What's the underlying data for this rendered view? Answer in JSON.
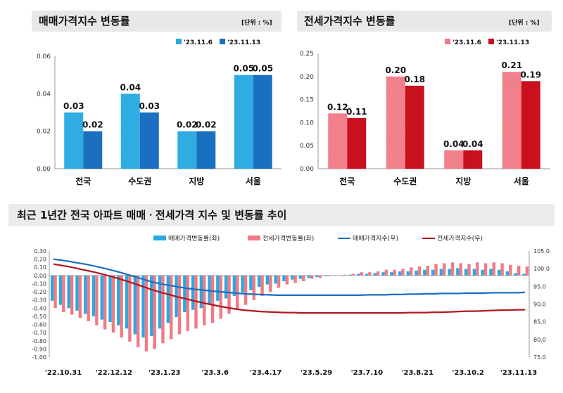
{
  "chart_data": [
    {
      "type": "bar",
      "title": "매매가격지수 변동률",
      "unit": "[단위 : %]",
      "categories": [
        "전국",
        "수도권",
        "지방",
        "서울"
      ],
      "series": [
        {
          "name": "'23.11.6",
          "values": [
            0.03,
            0.04,
            0.02,
            0.05
          ],
          "color": "#29a9e0"
        },
        {
          "name": "'23.11.13",
          "values": [
            0.02,
            0.03,
            0.02,
            0.05
          ],
          "color": "#1a6fc0"
        }
      ],
      "yticks": [
        "0.06",
        "0.04",
        "0.02",
        "0.00"
      ],
      "ylim": [
        0,
        0.06
      ],
      "legend": "top-right"
    },
    {
      "type": "bar",
      "title": "전세가격지수 변동률",
      "unit": "[단위 : %]",
      "categories": [
        "전국",
        "수도권",
        "지방",
        "서울"
      ],
      "series": [
        {
          "name": "'23.11.6",
          "values": [
            0.12,
            0.2,
            0.04,
            0.21
          ],
          "color": "#f07a85"
        },
        {
          "name": "'23.11.13",
          "values": [
            0.11,
            0.18,
            0.04,
            0.19
          ],
          "color": "#c8101e"
        }
      ],
      "yticks": [
        "0.25",
        "0.20",
        "0.15",
        "0.10",
        "0.05",
        "0.00"
      ],
      "ylim": [
        0,
        0.25
      ],
      "legend": "top-right"
    },
    {
      "type": "bar+line",
      "title": "최근 1년간 전국 아파트 매매ㆍ전세가격 지수 및 변동률 추이",
      "series": [
        {
          "name": "매매가격변동률(좌)",
          "kind": "bar",
          "axis": "left",
          "color": "#29a9e0",
          "values": [
            -0.31,
            -0.36,
            -0.4,
            -0.43,
            -0.47,
            -0.5,
            -0.54,
            -0.57,
            -0.61,
            -0.65,
            -0.72,
            -0.76,
            -0.74,
            -0.65,
            -0.58,
            -0.51,
            -0.45,
            -0.42,
            -0.4,
            -0.36,
            -0.31,
            -0.28,
            -0.25,
            -0.21,
            -0.18,
            -0.14,
            -0.11,
            -0.1,
            -0.07,
            -0.05,
            -0.04,
            -0.03,
            -0.02,
            -0.01,
            0.0,
            0.0,
            0.01,
            0.02,
            0.02,
            0.03,
            0.04,
            0.04,
            0.05,
            0.05,
            0.06,
            0.07,
            0.07,
            0.08,
            0.08,
            0.09,
            0.08,
            0.08,
            0.07,
            0.08,
            0.07,
            0.05,
            0.03,
            0.02
          ]
        },
        {
          "name": "전세가격변동률(좌)",
          "kind": "bar",
          "axis": "left",
          "color": "#f07a85",
          "values": [
            -0.4,
            -0.45,
            -0.48,
            -0.52,
            -0.56,
            -0.61,
            -0.66,
            -0.7,
            -0.76,
            -0.81,
            -0.88,
            -0.93,
            -0.9,
            -0.83,
            -0.78,
            -0.72,
            -0.68,
            -0.65,
            -0.61,
            -0.58,
            -0.53,
            -0.47,
            -0.42,
            -0.36,
            -0.3,
            -0.25,
            -0.2,
            -0.15,
            -0.11,
            -0.09,
            -0.07,
            -0.04,
            -0.03,
            -0.01,
            0.0,
            0.01,
            0.02,
            0.04,
            0.04,
            0.05,
            0.07,
            0.07,
            0.08,
            0.1,
            0.11,
            0.12,
            0.14,
            0.15,
            0.16,
            0.15,
            0.14,
            0.16,
            0.15,
            0.16,
            0.15,
            0.13,
            0.12,
            0.11
          ]
        },
        {
          "name": "매매가격지수(우)",
          "kind": "line",
          "axis": "right",
          "color": "#1a6fc0",
          "values": [
            102.7,
            102.4,
            102.0,
            101.6,
            101.2,
            100.7,
            100.2,
            99.6,
            99.0,
            98.3,
            97.6,
            96.9,
            96.2,
            95.7,
            95.3,
            94.9,
            94.5,
            94.2,
            94.0,
            93.7,
            93.5,
            93.3,
            93.1,
            92.9,
            92.8,
            92.7,
            92.6,
            92.5,
            92.5,
            92.5,
            92.5,
            92.5,
            92.5,
            92.5,
            92.5,
            92.5,
            92.5,
            92.5,
            92.6,
            92.6,
            92.6,
            92.7,
            92.7,
            92.8,
            92.8,
            92.9,
            92.9,
            93.0,
            93.0,
            93.0,
            93.1,
            93.1,
            93.1,
            93.2,
            93.2,
            93.2,
            93.2,
            93.3
          ]
        },
        {
          "name": "전세가격지수(우)",
          "kind": "line",
          "axis": "right",
          "color": "#b01820",
          "values": [
            101.3,
            100.9,
            100.5,
            100.0,
            99.5,
            99.0,
            98.4,
            97.8,
            97.1,
            96.4,
            95.6,
            94.8,
            94.0,
            93.3,
            92.7,
            92.0,
            91.5,
            90.9,
            90.4,
            89.9,
            89.4,
            89.0,
            88.6,
            88.3,
            88.1,
            87.9,
            87.8,
            87.7,
            87.6,
            87.6,
            87.5,
            87.5,
            87.5,
            87.5,
            87.5,
            87.5,
            87.5,
            87.5,
            87.5,
            87.5,
            87.5,
            87.5,
            87.5,
            87.6,
            87.6,
            87.6,
            87.7,
            87.7,
            87.8,
            87.9,
            88.0,
            88.0,
            88.1,
            88.2,
            88.3,
            88.3,
            88.4,
            88.4
          ]
        }
      ],
      "left_ticks": [
        "0.30",
        "0.20",
        "0.10",
        "0.00",
        "-0.10",
        "-0.20",
        "-0.30",
        "-0.40",
        "-0.50",
        "-0.60",
        "-0.70",
        "-0.80",
        "-0.90",
        "-1.00"
      ],
      "left_ylim": [
        -1.0,
        0.3
      ],
      "right_ticks": [
        "105.0",
        "100.0",
        "95.0",
        "90.0",
        "85.0",
        "80.0",
        "75.0"
      ],
      "right_ylim": [
        75,
        105
      ],
      "x_labels": [
        "'22.10.31",
        "'22.12.12",
        "'23.1.23",
        "'23.3.6",
        "'23.4.17",
        "'23.5.29",
        "'23.7.10",
        "'23.8.21",
        "'23.10.2",
        "'23.11.13"
      ],
      "legend": "top"
    }
  ]
}
